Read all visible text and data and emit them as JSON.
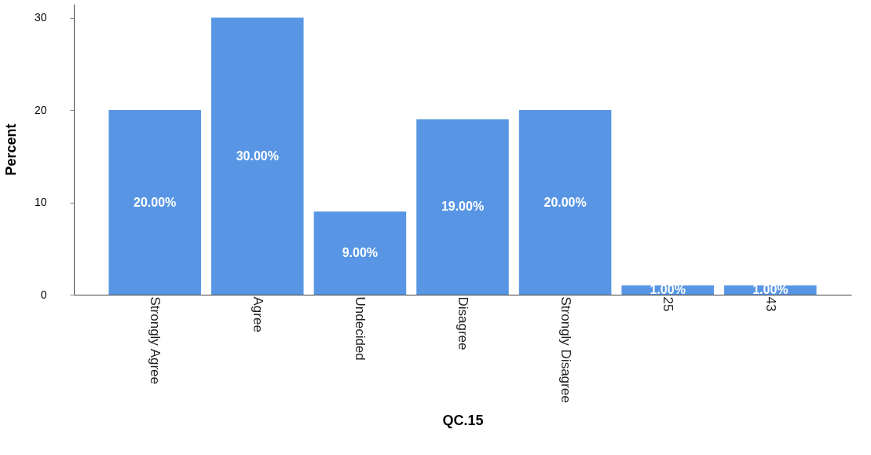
{
  "chart_data": {
    "type": "bar",
    "xlabel": "QC.15",
    "ylabel": "Percent",
    "categories": [
      "Strongly Agree",
      "Agree",
      "Undecided",
      "Disagree",
      "Strongly Disagree",
      "25",
      "43"
    ],
    "values": [
      20,
      30,
      9,
      19,
      20,
      1,
      1
    ],
    "value_labels": [
      "20.00%",
      "30.00%",
      "9.00%",
      "19.00%",
      "20.00%",
      "1.00%",
      "1.00%"
    ],
    "color": "#5896e5",
    "ylim": [
      0,
      31.5
    ],
    "yticks": [
      0,
      10,
      20,
      30
    ],
    "grid": false
  }
}
